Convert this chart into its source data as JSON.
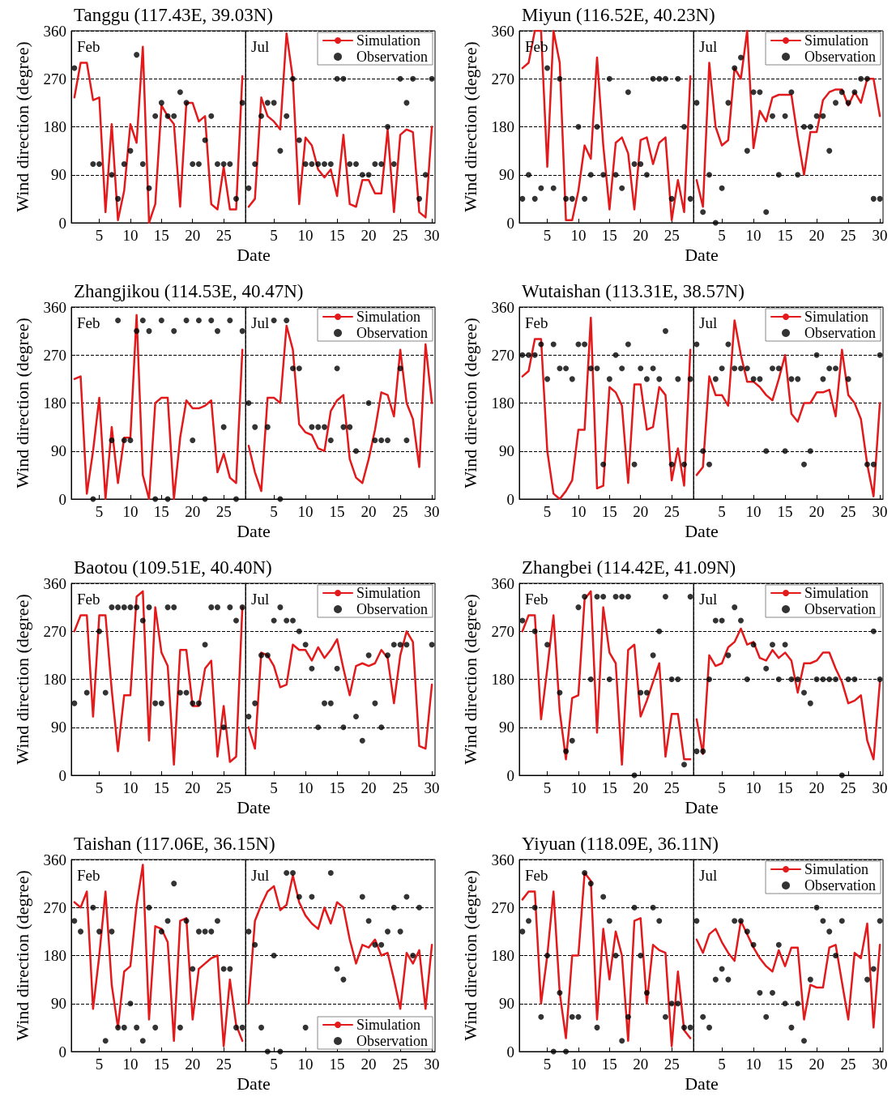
{
  "chart_data": [
    {
      "type": "line",
      "title": "Tanggu (117.43E, 39.03N)",
      "xlabel": "Date",
      "ylabel": "Wind direction (degree)",
      "annotations": [
        "Feb"
      ],
      "x": [
        1,
        2,
        3,
        4,
        5,
        6,
        7,
        8,
        9,
        10,
        11,
        12,
        13,
        14,
        15,
        16,
        17,
        18,
        19,
        20,
        21,
        22,
        23,
        24,
        25,
        26,
        27,
        28
      ],
      "xlim": [
        0.5,
        28.5
      ],
      "xticks": [
        5,
        10,
        15,
        20,
        25
      ],
      "ylim": [
        0,
        360
      ],
      "yticks": [
        0,
        90,
        180,
        270,
        360
      ],
      "grid": "y",
      "series": [
        {
          "color": "#e31a1c",
          "marker": "none",
          "values": [
            235,
            300,
            300,
            230,
            235,
            20,
            185,
            5,
            60,
            185,
            150,
            330,
            0,
            35,
            220,
            200,
            185,
            30,
            225,
            225,
            190,
            200,
            35,
            25,
            105,
            25,
            25,
            275
          ]
        },
        {
          "type": "scatter",
          "color": "#000000",
          "marker": "circle",
          "values": [
            290,
            null,
            null,
            110,
            110,
            null,
            90,
            45,
            110,
            135,
            315,
            110,
            65,
            200,
            225,
            200,
            200,
            245,
            225,
            110,
            110,
            155,
            200,
            110,
            110,
            110,
            45,
            225
          ]
        }
      ]
    },
    {
      "type": "line",
      "annotations": [
        "Jul"
      ],
      "x": [
        1,
        2,
        3,
        4,
        5,
        6,
        7,
        8,
        9,
        10,
        11,
        12,
        13,
        14,
        15,
        16,
        17,
        18,
        19,
        20,
        21,
        22,
        23,
        24,
        25,
        26,
        27,
        28,
        29,
        30
      ],
      "xlim": [
        0.5,
        30.5
      ],
      "xticks": [
        5,
        10,
        15,
        20,
        25,
        30
      ],
      "ylim": [
        0,
        360
      ],
      "yticks": [
        0,
        90,
        180,
        270,
        360
      ],
      "grid": "y",
      "tick_labels": "x",
      "legend": "top right",
      "series": [
        {
          "name": "Simulation",
          "color": "#e31a1c",
          "marker": "none",
          "values": [
            30,
            45,
            235,
            200,
            190,
            175,
            355,
            270,
            35,
            160,
            145,
            100,
            85,
            100,
            50,
            165,
            35,
            30,
            80,
            80,
            55,
            55,
            175,
            20,
            165,
            175,
            170,
            20,
            10,
            180
          ]
        },
        {
          "name": "Observation",
          "type": "scatter",
          "color": "#000000",
          "marker": "circle",
          "values": [
            65,
            110,
            200,
            225,
            225,
            135,
            200,
            270,
            155,
            110,
            110,
            110,
            110,
            110,
            270,
            270,
            110,
            110,
            90,
            90,
            110,
            110,
            180,
            110,
            270,
            225,
            270,
            45,
            90,
            270
          ]
        }
      ]
    },
    {
      "type": "line",
      "title": "Miyun (116.52E, 40.23N)",
      "xlabel": "Date",
      "ylabel": "Wind direction (degree)",
      "annotations": [
        "Feb"
      ],
      "x": [
        1,
        2,
        3,
        4,
        5,
        6,
        7,
        8,
        9,
        10,
        11,
        12,
        13,
        14,
        15,
        16,
        17,
        18,
        19,
        20,
        21,
        22,
        23,
        24,
        25,
        26,
        27,
        28
      ],
      "xlim": [
        0.5,
        28.5
      ],
      "xticks": [
        5,
        10,
        15,
        20,
        25
      ],
      "ylim": [
        0,
        360
      ],
      "yticks": [
        0,
        90,
        180,
        270,
        360
      ],
      "grid": "y",
      "series": [
        {
          "color": "#e31a1c",
          "marker": "none",
          "values": [
            290,
            300,
            360,
            360,
            105,
            360,
            300,
            5,
            5,
            60,
            145,
            120,
            310,
            145,
            25,
            150,
            160,
            130,
            25,
            155,
            160,
            110,
            150,
            160,
            5,
            80,
            20,
            275
          ]
        },
        {
          "type": "scatter",
          "color": "#000000",
          "marker": "circle",
          "values": [
            45,
            90,
            45,
            65,
            290,
            65,
            270,
            45,
            45,
            180,
            45,
            90,
            180,
            90,
            270,
            90,
            65,
            245,
            110,
            110,
            90,
            270,
            270,
            270,
            45,
            270,
            180,
            45
          ]
        }
      ]
    },
    {
      "type": "line",
      "annotations": [
        "Jul"
      ],
      "x": [
        1,
        2,
        3,
        4,
        5,
        6,
        7,
        8,
        9,
        10,
        11,
        12,
        13,
        14,
        15,
        16,
        17,
        18,
        19,
        20,
        21,
        22,
        23,
        24,
        25,
        26,
        27,
        28,
        29,
        30
      ],
      "xlim": [
        0.5,
        30.5
      ],
      "xticks": [
        5,
        10,
        15,
        20,
        25,
        30
      ],
      "ylim": [
        0,
        360
      ],
      "yticks": [
        0,
        90,
        180,
        270,
        360
      ],
      "grid": "y",
      "tick_labels": "x",
      "legend": "top right",
      "series": [
        {
          "name": "Simulation",
          "color": "#e31a1c",
          "marker": "none",
          "values": [
            80,
            30,
            300,
            180,
            145,
            155,
            290,
            270,
            360,
            140,
            210,
            190,
            235,
            240,
            240,
            240,
            160,
            90,
            170,
            170,
            230,
            245,
            250,
            250,
            220,
            245,
            225,
            270,
            270,
            200
          ]
        },
        {
          "name": "Observation",
          "type": "scatter",
          "color": "#000000",
          "marker": "circle",
          "values": [
            225,
            20,
            90,
            0,
            65,
            225,
            290,
            310,
            135,
            245,
            245,
            20,
            200,
            90,
            200,
            245,
            90,
            180,
            180,
            200,
            200,
            135,
            225,
            245,
            225,
            245,
            270,
            270,
            45,
            45
          ]
        }
      ]
    },
    {
      "type": "line",
      "title": "Zhangjikou (114.53E, 40.47N)",
      "xlabel": "Date",
      "ylabel": "Wind direction (degree)",
      "annotations": [
        "Feb"
      ],
      "x": [
        1,
        2,
        3,
        4,
        5,
        6,
        7,
        8,
        9,
        10,
        11,
        12,
        13,
        14,
        15,
        16,
        17,
        18,
        19,
        20,
        21,
        22,
        23,
        24,
        25,
        26,
        27,
        28
      ],
      "xlim": [
        0.5,
        28.5
      ],
      "xticks": [
        5,
        10,
        15,
        20,
        25
      ],
      "ylim": [
        0,
        360
      ],
      "yticks": [
        0,
        90,
        180,
        270,
        360
      ],
      "grid": "y",
      "series": [
        {
          "color": "#e31a1c",
          "marker": "none",
          "values": [
            225,
            230,
            10,
            90,
            190,
            0,
            135,
            30,
            115,
            115,
            345,
            45,
            0,
            180,
            190,
            190,
            0,
            115,
            185,
            170,
            170,
            175,
            185,
            50,
            85,
            40,
            30,
            280
          ]
        },
        {
          "type": "scatter",
          "color": "#000000",
          "marker": "circle",
          "values": [
            null,
            null,
            null,
            0,
            null,
            null,
            110,
            335,
            110,
            110,
            315,
            335,
            315,
            0,
            335,
            0,
            315,
            null,
            335,
            110,
            335,
            0,
            335,
            315,
            135,
            335,
            0,
            315
          ]
        }
      ]
    },
    {
      "type": "line",
      "annotations": [
        "Jul"
      ],
      "x": [
        1,
        2,
        3,
        4,
        5,
        6,
        7,
        8,
        9,
        10,
        11,
        12,
        13,
        14,
        15,
        16,
        17,
        18,
        19,
        20,
        21,
        22,
        23,
        24,
        25,
        26,
        27,
        28,
        29,
        30
      ],
      "xlim": [
        0.5,
        30.5
      ],
      "xticks": [
        5,
        10,
        15,
        20,
        25,
        30
      ],
      "ylim": [
        0,
        360
      ],
      "yticks": [
        0,
        90,
        180,
        270,
        360
      ],
      "grid": "y",
      "tick_labels": "x",
      "legend": "top right",
      "series": [
        {
          "name": "Simulation",
          "color": "#e31a1c",
          "marker": "none",
          "values": [
            100,
            50,
            15,
            190,
            190,
            180,
            325,
            280,
            140,
            125,
            120,
            95,
            90,
            165,
            185,
            195,
            75,
            40,
            30,
            75,
            130,
            200,
            195,
            155,
            280,
            180,
            150,
            60,
            290,
            180
          ]
        },
        {
          "name": "Observation",
          "type": "scatter",
          "color": "#000000",
          "marker": "circle",
          "values": [
            180,
            135,
            null,
            135,
            335,
            0,
            335,
            245,
            245,
            null,
            135,
            135,
            135,
            110,
            245,
            135,
            135,
            90,
            null,
            180,
            110,
            110,
            110,
            null,
            245,
            110,
            null,
            null,
            null,
            null
          ]
        }
      ]
    },
    {
      "type": "line",
      "title": "Wutaishan (113.31E, 38.57N)",
      "xlabel": "Date",
      "ylabel": "Wind direction (degree)",
      "annotations": [
        "Feb"
      ],
      "x": [
        1,
        2,
        3,
        4,
        5,
        6,
        7,
        8,
        9,
        10,
        11,
        12,
        13,
        14,
        15,
        16,
        17,
        18,
        19,
        20,
        21,
        22,
        23,
        24,
        25,
        26,
        27,
        28
      ],
      "xlim": [
        0.5,
        28.5
      ],
      "xticks": [
        5,
        10,
        15,
        20,
        25
      ],
      "ylim": [
        0,
        360
      ],
      "yticks": [
        0,
        90,
        180,
        270,
        360
      ],
      "grid": "y",
      "series": [
        {
          "color": "#e31a1c",
          "marker": "none",
          "values": [
            230,
            240,
            300,
            300,
            90,
            10,
            0,
            15,
            35,
            130,
            130,
            340,
            20,
            25,
            210,
            200,
            175,
            30,
            215,
            215,
            130,
            135,
            210,
            195,
            35,
            95,
            25,
            280
          ]
        },
        {
          "type": "scatter",
          "color": "#000000",
          "marker": "circle",
          "values": [
            270,
            270,
            270,
            290,
            225,
            290,
            245,
            245,
            225,
            290,
            290,
            245,
            245,
            65,
            225,
            270,
            245,
            290,
            65,
            245,
            225,
            245,
            225,
            315,
            65,
            225,
            65,
            225
          ]
        }
      ]
    },
    {
      "type": "line",
      "annotations": [
        "Jul"
      ],
      "x": [
        1,
        2,
        3,
        4,
        5,
        6,
        7,
        8,
        9,
        10,
        11,
        12,
        13,
        14,
        15,
        16,
        17,
        18,
        19,
        20,
        21,
        22,
        23,
        24,
        25,
        26,
        27,
        28,
        29,
        30
      ],
      "xlim": [
        0.5,
        30.5
      ],
      "xticks": [
        5,
        10,
        15,
        20,
        25,
        30
      ],
      "ylim": [
        0,
        360
      ],
      "yticks": [
        0,
        90,
        180,
        270,
        360
      ],
      "grid": "y",
      "tick_labels": "x",
      "legend": "top right",
      "series": [
        {
          "name": "Simulation",
          "color": "#e31a1c",
          "marker": "none",
          "values": [
            45,
            60,
            230,
            195,
            195,
            175,
            335,
            270,
            220,
            220,
            210,
            195,
            185,
            225,
            270,
            160,
            145,
            180,
            180,
            200,
            200,
            205,
            155,
            280,
            195,
            180,
            150,
            65,
            5,
            180
          ]
        },
        {
          "name": "Observation",
          "type": "scatter",
          "color": "#000000",
          "marker": "circle",
          "values": [
            290,
            90,
            65,
            225,
            245,
            290,
            245,
            245,
            245,
            225,
            225,
            90,
            245,
            245,
            90,
            225,
            225,
            65,
            90,
            270,
            225,
            245,
            245,
            null,
            225,
            null,
            null,
            65,
            65,
            270
          ]
        }
      ]
    },
    {
      "type": "line",
      "title": "Baotou (109.51E, 40.40N)",
      "xlabel": "Date",
      "ylabel": "Wind direction (degree)",
      "annotations": [
        "Feb"
      ],
      "x": [
        1,
        2,
        3,
        4,
        5,
        6,
        7,
        8,
        9,
        10,
        11,
        12,
        13,
        14,
        15,
        16,
        17,
        18,
        19,
        20,
        21,
        22,
        23,
        24,
        25,
        26,
        27,
        28
      ],
      "xlim": [
        0.5,
        28.5
      ],
      "xticks": [
        5,
        10,
        15,
        20,
        25
      ],
      "ylim": [
        0,
        360
      ],
      "yticks": [
        0,
        90,
        180,
        270,
        360
      ],
      "grid": "y",
      "series": [
        {
          "color": "#e31a1c",
          "marker": "none",
          "values": [
            270,
            300,
            300,
            110,
            300,
            300,
            160,
            45,
            150,
            150,
            335,
            345,
            65,
            315,
            230,
            205,
            20,
            235,
            235,
            130,
            130,
            200,
            215,
            35,
            130,
            25,
            35,
            315
          ]
        },
        {
          "type": "scatter",
          "color": "#000000",
          "marker": "circle",
          "values": [
            135,
            null,
            155,
            null,
            270,
            155,
            315,
            315,
            315,
            315,
            315,
            290,
            315,
            135,
            135,
            315,
            315,
            155,
            155,
            135,
            135,
            245,
            315,
            315,
            90,
            315,
            290,
            315
          ]
        }
      ]
    },
    {
      "type": "line",
      "annotations": [
        "Jul"
      ],
      "x": [
        1,
        2,
        3,
        4,
        5,
        6,
        7,
        8,
        9,
        10,
        11,
        12,
        13,
        14,
        15,
        16,
        17,
        18,
        19,
        20,
        21,
        22,
        23,
        24,
        25,
        26,
        27,
        28,
        29,
        30
      ],
      "xlim": [
        0.5,
        30.5
      ],
      "xticks": [
        5,
        10,
        15,
        20,
        25,
        30
      ],
      "ylim": [
        0,
        360
      ],
      "yticks": [
        0,
        90,
        180,
        270,
        360
      ],
      "grid": "y",
      "tick_labels": "x",
      "legend": "top right",
      "series": [
        {
          "name": "Simulation",
          "color": "#e31a1c",
          "marker": "none",
          "values": [
            90,
            50,
            230,
            225,
            205,
            165,
            170,
            245,
            235,
            235,
            215,
            240,
            220,
            235,
            255,
            200,
            150,
            205,
            210,
            205,
            210,
            235,
            220,
            135,
            225,
            270,
            250,
            55,
            50,
            170
          ]
        },
        {
          "name": "Observation",
          "type": "scatter",
          "color": "#000000",
          "marker": "circle",
          "values": [
            110,
            135,
            225,
            225,
            290,
            315,
            290,
            290,
            270,
            245,
            200,
            90,
            135,
            135,
            200,
            90,
            null,
            110,
            65,
            225,
            135,
            90,
            225,
            245,
            245,
            245,
            null,
            null,
            null,
            245
          ]
        }
      ]
    },
    {
      "type": "line",
      "title": "Zhangbei (114.42E, 41.09N)",
      "xlabel": "Date",
      "ylabel": "Wind direction (degree)",
      "annotations": [
        "Feb"
      ],
      "x": [
        1,
        2,
        3,
        4,
        5,
        6,
        7,
        8,
        9,
        10,
        11,
        12,
        13,
        14,
        15,
        16,
        17,
        18,
        19,
        20,
        21,
        22,
        23,
        24,
        25,
        26,
        27,
        28
      ],
      "xlim": [
        0.5,
        28.5
      ],
      "xticks": [
        5,
        10,
        15,
        20,
        25
      ],
      "ylim": [
        0,
        360
      ],
      "yticks": [
        0,
        90,
        180,
        270,
        360
      ],
      "grid": "y",
      "series": [
        {
          "color": "#e31a1c",
          "marker": "none",
          "values": [
            270,
            300,
            300,
            105,
            200,
            300,
            120,
            30,
            145,
            150,
            330,
            345,
            80,
            315,
            230,
            210,
            20,
            235,
            245,
            110,
            140,
            175,
            210,
            35,
            115,
            115,
            30,
            30
          ]
        },
        {
          "type": "scatter",
          "color": "#000000",
          "marker": "circle",
          "values": [
            290,
            null,
            270,
            null,
            245,
            null,
            155,
            45,
            65,
            315,
            335,
            180,
            335,
            335,
            180,
            335,
            335,
            335,
            0,
            155,
            155,
            225,
            270,
            335,
            180,
            180,
            20,
            335
          ]
        }
      ]
    },
    {
      "type": "line",
      "annotations": [
        "Jul"
      ],
      "x": [
        1,
        2,
        3,
        4,
        5,
        6,
        7,
        8,
        9,
        10,
        11,
        12,
        13,
        14,
        15,
        16,
        17,
        18,
        19,
        20,
        21,
        22,
        23,
        24,
        25,
        26,
        27,
        28,
        29,
        30
      ],
      "xlim": [
        0.5,
        30.5
      ],
      "xticks": [
        5,
        10,
        15,
        20,
        25,
        30
      ],
      "ylim": [
        0,
        360
      ],
      "yticks": [
        0,
        90,
        180,
        270,
        360
      ],
      "grid": "y",
      "tick_labels": "x",
      "legend": "top right",
      "series": [
        {
          "name": "Simulation",
          "color": "#e31a1c",
          "marker": "none",
          "values": [
            105,
            40,
            225,
            205,
            210,
            240,
            250,
            275,
            245,
            250,
            220,
            215,
            235,
            220,
            230,
            215,
            155,
            210,
            210,
            215,
            230,
            230,
            200,
            175,
            135,
            140,
            150,
            65,
            30,
            175
          ]
        },
        {
          "name": "Observation",
          "type": "scatter",
          "color": "#000000",
          "marker": "circle",
          "values": [
            45,
            45,
            180,
            290,
            290,
            225,
            315,
            290,
            180,
            245,
            null,
            200,
            245,
            180,
            245,
            180,
            180,
            155,
            135,
            180,
            180,
            180,
            180,
            0,
            180,
            180,
            null,
            null,
            270,
            180
          ]
        }
      ]
    },
    {
      "type": "line",
      "title": "Taishan (117.06E, 36.15N)",
      "xlabel": "Date",
      "ylabel": "Wind direction (degree)",
      "annotations": [
        "Feb"
      ],
      "x": [
        1,
        2,
        3,
        4,
        5,
        6,
        7,
        8,
        9,
        10,
        11,
        12,
        13,
        14,
        15,
        16,
        17,
        18,
        19,
        20,
        21,
        22,
        23,
        24,
        25,
        26,
        27,
        28
      ],
      "xlim": [
        0.5,
        28.5
      ],
      "xticks": [
        5,
        10,
        15,
        20,
        25
      ],
      "ylim": [
        0,
        360
      ],
      "yticks": [
        0,
        90,
        180,
        270,
        360
      ],
      "grid": "y",
      "series": [
        {
          "color": "#e31a1c",
          "marker": "none",
          "values": [
            280,
            270,
            300,
            80,
            180,
            300,
            125,
            45,
            150,
            160,
            275,
            350,
            60,
            235,
            230,
            205,
            20,
            245,
            250,
            60,
            155,
            165,
            175,
            180,
            10,
            135,
            50,
            20
          ]
        },
        {
          "type": "scatter",
          "color": "#000000",
          "marker": "circle",
          "values": [
            245,
            225,
            null,
            270,
            225,
            20,
            225,
            45,
            45,
            90,
            45,
            20,
            270,
            45,
            225,
            245,
            315,
            45,
            245,
            155,
            225,
            225,
            225,
            245,
            155,
            155,
            45,
            45
          ]
        }
      ]
    },
    {
      "type": "line",
      "annotations": [
        "Jul"
      ],
      "x": [
        1,
        2,
        3,
        4,
        5,
        6,
        7,
        8,
        9,
        10,
        11,
        12,
        13,
        14,
        15,
        16,
        17,
        18,
        19,
        20,
        21,
        22,
        23,
        24,
        25,
        26,
        27,
        28,
        29,
        30
      ],
      "xlim": [
        0.5,
        30.5
      ],
      "xticks": [
        5,
        10,
        15,
        20,
        25,
        30
      ],
      "ylim": [
        0,
        360
      ],
      "yticks": [
        0,
        90,
        180,
        270,
        360
      ],
      "grid": "y",
      "tick_labels": "x",
      "legend": "bottom right",
      "series": [
        {
          "name": "Simulation",
          "color": "#e31a1c",
          "marker": "none",
          "values": [
            90,
            245,
            275,
            300,
            310,
            265,
            275,
            330,
            280,
            255,
            240,
            230,
            270,
            240,
            280,
            270,
            210,
            165,
            200,
            195,
            210,
            180,
            185,
            135,
            80,
            185,
            165,
            190,
            80,
            200
          ]
        },
        {
          "name": "Observation",
          "type": "scatter",
          "color": "#000000",
          "marker": "circle",
          "values": [
            225,
            200,
            45,
            0,
            180,
            0,
            335,
            335,
            290,
            45,
            290,
            null,
            null,
            335,
            155,
            135,
            null,
            null,
            290,
            245,
            200,
            200,
            225,
            270,
            225,
            290,
            180,
            270,
            null,
            null
          ]
        }
      ]
    },
    {
      "type": "line",
      "title": "Yiyuan (118.09E, 36.11N)",
      "xlabel": "Date",
      "ylabel": "Wind direction (degree)",
      "annotations": [
        "Feb"
      ],
      "x": [
        1,
        2,
        3,
        4,
        5,
        6,
        7,
        8,
        9,
        10,
        11,
        12,
        13,
        14,
        15,
        16,
        17,
        18,
        19,
        20,
        21,
        22,
        23,
        24,
        25,
        26,
        27,
        28
      ],
      "xlim": [
        0.5,
        28.5
      ],
      "xticks": [
        5,
        10,
        15,
        20,
        25
      ],
      "ylim": [
        0,
        360
      ],
      "yticks": [
        0,
        90,
        180,
        270,
        360
      ],
      "grid": "y",
      "series": [
        {
          "color": "#e31a1c",
          "marker": "none",
          "values": [
            285,
            300,
            300,
            90,
            180,
            300,
            110,
            25,
            180,
            180,
            335,
            320,
            60,
            230,
            135,
            225,
            180,
            20,
            245,
            250,
            90,
            200,
            190,
            185,
            10,
            150,
            40,
            25
          ]
        },
        {
          "type": "scatter",
          "color": "#000000",
          "marker": "circle",
          "values": [
            225,
            245,
            270,
            65,
            180,
            0,
            110,
            0,
            65,
            65,
            335,
            315,
            45,
            290,
            245,
            180,
            20,
            65,
            270,
            180,
            110,
            270,
            245,
            65,
            90,
            90,
            45,
            45
          ]
        }
      ]
    },
    {
      "type": "line",
      "annotations": [
        "Jul"
      ],
      "x": [
        1,
        2,
        3,
        4,
        5,
        6,
        7,
        8,
        9,
        10,
        11,
        12,
        13,
        14,
        15,
        16,
        17,
        18,
        19,
        20,
        21,
        22,
        23,
        24,
        25,
        26,
        27,
        28,
        29,
        30
      ],
      "xlim": [
        0.5,
        30.5
      ],
      "xticks": [
        5,
        10,
        15,
        20,
        25,
        30
      ],
      "ylim": [
        0,
        360
      ],
      "yticks": [
        0,
        90,
        180,
        270,
        360
      ],
      "grid": "y",
      "tick_labels": "x",
      "legend": "top right",
      "series": [
        {
          "name": "Simulation",
          "color": "#e31a1c",
          "marker": "none",
          "values": [
            210,
            185,
            220,
            230,
            205,
            185,
            170,
            245,
            220,
            195,
            175,
            160,
            150,
            190,
            160,
            195,
            195,
            60,
            125,
            120,
            120,
            195,
            200,
            130,
            60,
            185,
            175,
            240,
            45,
            200
          ]
        },
        {
          "name": "Observation",
          "type": "scatter",
          "color": "#000000",
          "marker": "circle",
          "values": [
            245,
            65,
            45,
            135,
            155,
            135,
            245,
            245,
            225,
            200,
            110,
            65,
            110,
            200,
            90,
            45,
            90,
            20,
            135,
            270,
            245,
            225,
            180,
            245,
            null,
            null,
            null,
            135,
            155,
            245
          ]
        }
      ]
    }
  ]
}
